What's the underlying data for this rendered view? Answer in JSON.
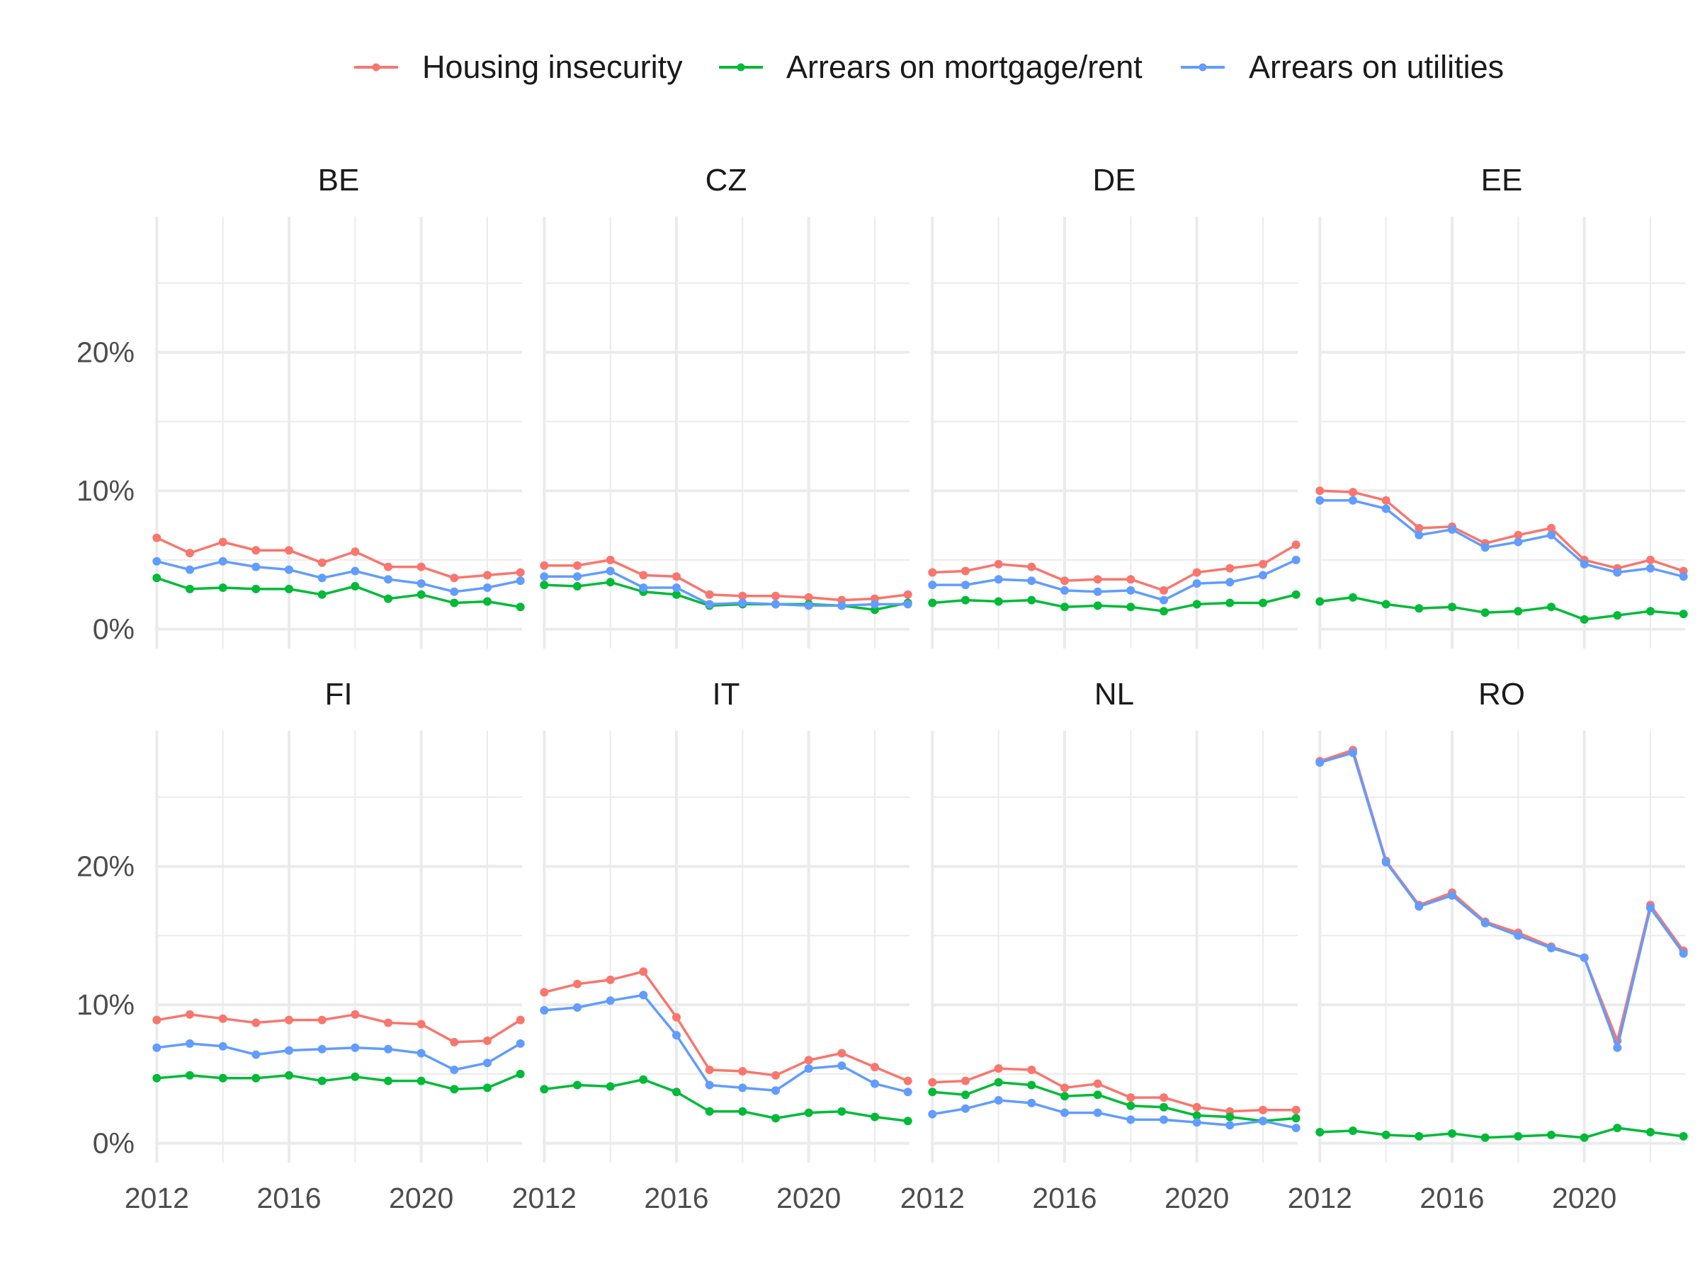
{
  "chart_data": {
    "type": "line",
    "title": "",
    "xlabel": "",
    "ylabel": "",
    "x": [
      2012,
      2013,
      2014,
      2015,
      2016,
      2017,
      2018,
      2019,
      2020,
      2021,
      2022,
      2023
    ],
    "xlim": [
      2011.95,
      2023.05
    ],
    "ylim": [
      -1.4,
      29.8
    ],
    "x_ticks": [
      2012,
      2016,
      2020
    ],
    "x_tick_labels": [
      "2012",
      "2016",
      "2020"
    ],
    "y_ticks": [
      0,
      10,
      20
    ],
    "y_tick_labels": [
      "0%",
      "10%",
      "20%"
    ],
    "grid": true,
    "legend_position": "top",
    "legend": [
      {
        "name": "Housing insecurity",
        "color": "#F8766D"
      },
      {
        "name": "Arrears on mortgage/rent",
        "color": "#00BA38"
      },
      {
        "name": "Arrears on utilities",
        "color": "#619CFF"
      }
    ],
    "panels": [
      {
        "label": "BE",
        "series": [
          {
            "name": "Housing insecurity",
            "values": [
              6.6,
              5.5,
              6.3,
              5.7,
              5.7,
              4.8,
              5.6,
              4.5,
              4.5,
              3.7,
              3.9,
              4.1
            ]
          },
          {
            "name": "Arrears on mortgage/rent",
            "values": [
              3.7,
              2.9,
              3.0,
              2.9,
              2.9,
              2.5,
              3.1,
              2.2,
              2.5,
              1.9,
              2.0,
              1.6
            ]
          },
          {
            "name": "Arrears on utilities",
            "values": [
              4.9,
              4.3,
              4.9,
              4.5,
              4.3,
              3.7,
              4.2,
              3.6,
              3.3,
              2.7,
              3.0,
              3.5
            ]
          }
        ]
      },
      {
        "label": "CZ",
        "series": [
          {
            "name": "Housing insecurity",
            "values": [
              4.6,
              4.6,
              5.0,
              3.9,
              3.8,
              2.5,
              2.4,
              2.4,
              2.3,
              2.1,
              2.2,
              2.5
            ]
          },
          {
            "name": "Arrears on mortgage/rent",
            "values": [
              3.2,
              3.1,
              3.4,
              2.7,
              2.5,
              1.7,
              1.8,
              1.8,
              1.8,
              1.7,
              1.4,
              1.9
            ]
          },
          {
            "name": "Arrears on utilities",
            "values": [
              3.8,
              3.8,
              4.2,
              3.0,
              3.0,
              1.8,
              1.9,
              1.8,
              1.7,
              1.7,
              1.8,
              1.8
            ]
          }
        ]
      },
      {
        "label": "DE",
        "series": [
          {
            "name": "Housing insecurity",
            "values": [
              4.1,
              4.2,
              4.7,
              4.5,
              3.5,
              3.6,
              3.6,
              2.8,
              4.1,
              4.4,
              4.7,
              6.1
            ]
          },
          {
            "name": "Arrears on mortgage/rent",
            "values": [
              1.9,
              2.1,
              2.0,
              2.1,
              1.6,
              1.7,
              1.6,
              1.3,
              1.8,
              1.9,
              1.9,
              2.5
            ]
          },
          {
            "name": "Arrears on utilities",
            "values": [
              3.2,
              3.2,
              3.6,
              3.5,
              2.8,
              2.7,
              2.8,
              2.1,
              3.3,
              3.4,
              3.9,
              5.0
            ]
          }
        ]
      },
      {
        "label": "EE",
        "series": [
          {
            "name": "Housing insecurity",
            "values": [
              10.0,
              9.9,
              9.3,
              7.3,
              7.4,
              6.2,
              6.8,
              7.3,
              5.0,
              4.4,
              5.0,
              4.2
            ]
          },
          {
            "name": "Arrears on mortgage/rent",
            "values": [
              2.0,
              2.3,
              1.8,
              1.5,
              1.6,
              1.2,
              1.3,
              1.6,
              0.7,
              1.0,
              1.3,
              1.1
            ]
          },
          {
            "name": "Arrears on utilities",
            "values": [
              9.3,
              9.3,
              8.7,
              6.8,
              7.2,
              5.9,
              6.3,
              6.8,
              4.7,
              4.1,
              4.4,
              3.8
            ]
          }
        ]
      },
      {
        "label": "FI",
        "series": [
          {
            "name": "Housing insecurity",
            "values": [
              8.9,
              9.3,
              9.0,
              8.7,
              8.9,
              8.9,
              9.3,
              8.7,
              8.6,
              7.3,
              7.4,
              8.9
            ]
          },
          {
            "name": "Arrears on mortgage/rent",
            "values": [
              4.7,
              4.9,
              4.7,
              4.7,
              4.9,
              4.5,
              4.8,
              4.5,
              4.5,
              3.9,
              4.0,
              5.0
            ]
          },
          {
            "name": "Arrears on utilities",
            "values": [
              6.9,
              7.2,
              7.0,
              6.4,
              6.7,
              6.8,
              6.9,
              6.8,
              6.5,
              5.3,
              5.8,
              7.2
            ]
          }
        ]
      },
      {
        "label": "IT",
        "series": [
          {
            "name": "Housing insecurity",
            "values": [
              10.9,
              11.5,
              11.8,
              12.4,
              9.1,
              5.3,
              5.2,
              4.9,
              6.0,
              6.5,
              5.5,
              4.5
            ]
          },
          {
            "name": "Arrears on mortgage/rent",
            "values": [
              3.9,
              4.2,
              4.1,
              4.6,
              3.7,
              2.3,
              2.3,
              1.8,
              2.2,
              2.3,
              1.9,
              1.6
            ]
          },
          {
            "name": "Arrears on utilities",
            "values": [
              9.6,
              9.8,
              10.3,
              10.7,
              7.8,
              4.2,
              4.0,
              3.8,
              5.4,
              5.6,
              4.3,
              3.7
            ]
          }
        ]
      },
      {
        "label": "NL",
        "series": [
          {
            "name": "Housing insecurity",
            "values": [
              4.4,
              4.5,
              5.4,
              5.3,
              4.0,
              4.3,
              3.3,
              3.3,
              2.6,
              2.3,
              2.4,
              2.4
            ]
          },
          {
            "name": "Arrears on mortgage/rent",
            "values": [
              3.7,
              3.5,
              4.4,
              4.2,
              3.4,
              3.5,
              2.7,
              2.6,
              2.0,
              1.9,
              1.6,
              1.8
            ]
          },
          {
            "name": "Arrears on utilities",
            "values": [
              2.1,
              2.5,
              3.1,
              2.9,
              2.2,
              2.2,
              1.7,
              1.7,
              1.5,
              1.3,
              1.6,
              1.1
            ]
          }
        ]
      },
      {
        "label": "RO",
        "series": [
          {
            "name": "Housing insecurity",
            "values": [
              27.6,
              28.4,
              20.4,
              17.2,
              18.1,
              16.0,
              15.2,
              14.2,
              13.4,
              7.4,
              17.2,
              13.9
            ]
          },
          {
            "name": "Arrears on mortgage/rent",
            "values": [
              0.8,
              0.9,
              0.6,
              0.5,
              0.7,
              0.4,
              0.5,
              0.6,
              0.4,
              1.1,
              0.8,
              0.5
            ]
          },
          {
            "name": "Arrears on utilities",
            "values": [
              27.5,
              28.2,
              20.3,
              17.1,
              17.9,
              15.9,
              15.0,
              14.1,
              13.4,
              6.9,
              17.0,
              13.7
            ]
          }
        ]
      }
    ]
  }
}
